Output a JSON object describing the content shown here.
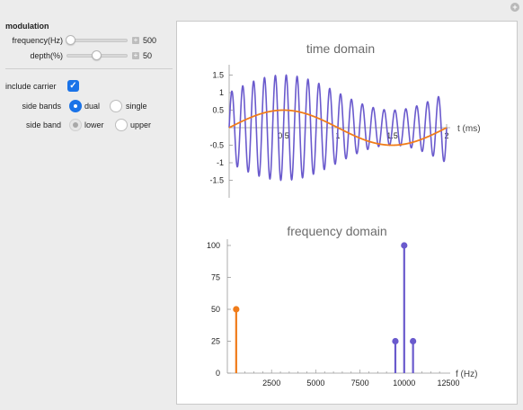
{
  "panel": {
    "section_title": "modulation",
    "frequency": {
      "label": "frequency(Hz)",
      "value": "500",
      "fraction": 0.0
    },
    "depth": {
      "label": "depth(%)",
      "value": "50",
      "fraction": 0.5
    },
    "include_carrier": {
      "label": "include carrier",
      "checked": true
    },
    "side_bands": {
      "label": "side bands",
      "options": [
        "dual",
        "single"
      ],
      "selected": "dual"
    },
    "side_band": {
      "label": "side band",
      "options": [
        "lower",
        "upper"
      ],
      "selected": "lower",
      "enabled": false
    }
  },
  "chart_data": [
    {
      "type": "line",
      "title": "time domain",
      "xlabel": "t (ms)",
      "ylabel": "",
      "xlim": [
        0,
        2
      ],
      "ylim": [
        -1.5,
        1.5
      ],
      "x_ticks": [
        "0.5",
        "1",
        "1.5",
        "2"
      ],
      "y_ticks": [
        "1.5",
        "1",
        "0.5",
        "-0.5",
        "-1",
        "-1.5"
      ],
      "series": [
        {
          "description": "AM signal: (1 + 0.5·sin(2π·0.5t))·sin(2π·10t)",
          "carrier_khz": 10,
          "mod_khz": 0.5,
          "depth": 0.5,
          "color": "#6a5acd"
        },
        {
          "description": "modulating signal: 0.5·sin(2π·0.5t)",
          "mod_khz": 0.5,
          "amplitude": 0.5,
          "color": "#f07c1a"
        }
      ]
    },
    {
      "type": "stem",
      "title": "frequency domain",
      "xlabel": "f (Hz)",
      "ylabel": "",
      "xlim": [
        0,
        12500
      ],
      "ylim": [
        0,
        100
      ],
      "x_ticks": [
        "2500",
        "5000",
        "7500",
        "10000",
        "12500"
      ],
      "y_ticks": [
        "100",
        "75",
        "50",
        "25",
        "0"
      ],
      "series": [
        {
          "color": "#f07c1a",
          "points": [
            [
              500,
              50
            ]
          ]
        },
        {
          "color": "#6a5acd",
          "points": [
            [
              9500,
              25
            ],
            [
              10000,
              100
            ],
            [
              10500,
              25
            ]
          ]
        }
      ]
    }
  ],
  "colors": {
    "accent": "#1a73e8",
    "signal": "#6a5acd",
    "modulation": "#f07c1a"
  },
  "icons": {
    "reset": "plus-circle-icon"
  }
}
